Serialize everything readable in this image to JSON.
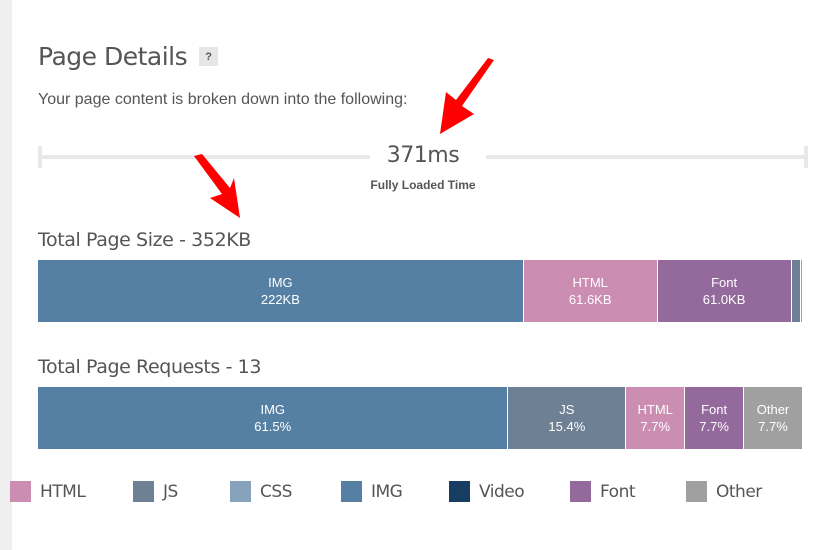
{
  "header": {
    "title": "Page Details",
    "help_label": "?",
    "subtitle": "Your page content is broken down into the following:"
  },
  "timing": {
    "value": "371ms",
    "label": "Fully Loaded Time"
  },
  "page_size": {
    "title": "Total Page Size - 352KB",
    "segments": [
      {
        "type": "IMG",
        "value": "222KB",
        "color": "#5580a4",
        "width_pct": 63.5
      },
      {
        "type": "HTML",
        "value": "61.6KB",
        "color": "#cc8db3",
        "width_pct": 17.5
      },
      {
        "type": "Font",
        "value": "61.0KB",
        "color": "#936a9b",
        "width_pct": 17.5
      },
      {
        "type": "JS",
        "value": "",
        "color": "#6e8093",
        "width_pct": 1.2
      },
      {
        "type": "Other",
        "value": "",
        "color": "#a0a0a0",
        "width_pct": 0.3
      }
    ]
  },
  "page_requests": {
    "title": "Total Page Requests - 13",
    "segments": [
      {
        "type": "IMG",
        "value": "61.5%",
        "color": "#5580a4",
        "width_pct": 61.5
      },
      {
        "type": "JS",
        "value": "15.4%",
        "color": "#6e8093",
        "width_pct": 15.4
      },
      {
        "type": "HTML",
        "value": "7.7%",
        "color": "#cc8db3",
        "width_pct": 7.7
      },
      {
        "type": "Font",
        "value": "7.7%",
        "color": "#936a9b",
        "width_pct": 7.7
      },
      {
        "type": "Other",
        "value": "7.7%",
        "color": "#a0a0a0",
        "width_pct": 7.7
      }
    ]
  },
  "legend": [
    {
      "label": "HTML",
      "color": "#cc8db3"
    },
    {
      "label": "JS",
      "color": "#6e8093"
    },
    {
      "label": "CSS",
      "color": "#86a3bb"
    },
    {
      "label": "IMG",
      "color": "#5580a4"
    },
    {
      "label": "Video",
      "color": "#173d63"
    },
    {
      "label": "Font",
      "color": "#936a9b"
    },
    {
      "label": "Other",
      "color": "#a0a0a0"
    }
  ],
  "annotations": {
    "arrow_color": "#ff0000"
  }
}
